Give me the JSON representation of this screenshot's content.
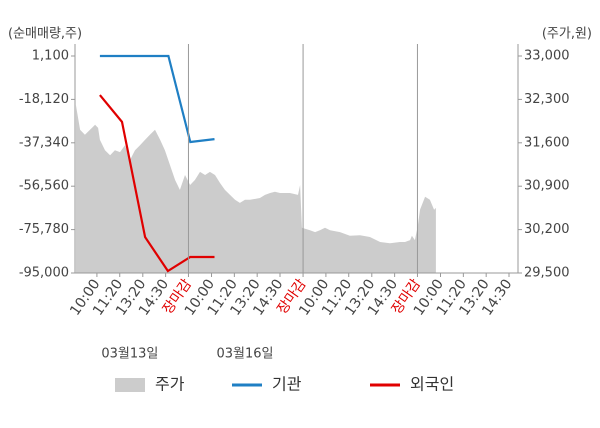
{
  "chart_data": {
    "type": "combo",
    "y_axis_label": "(순매매량,주)",
    "y2_axis_label": "(주가,원)",
    "xlim": [
      -0.65,
      18.56
    ],
    "xticks": [
      {
        "value": 0.3,
        "label": "10:00"
      },
      {
        "value": 1.29,
        "label": "11:20"
      },
      {
        "value": 2.29,
        "label": "13:20"
      },
      {
        "value": 3.28,
        "label": "14:30"
      },
      {
        "value": 4.27,
        "label": "장마감",
        "color": "#e00000"
      },
      {
        "value": 5.27,
        "label": "10:00"
      },
      {
        "value": 6.26,
        "label": "11:20"
      },
      {
        "value": 7.25,
        "label": "13:20"
      },
      {
        "value": 8.24,
        "label": "14:30"
      },
      {
        "value": 9.24,
        "label": "장마감",
        "color": "#e00000"
      },
      {
        "value": 10.23,
        "label": "10:00"
      },
      {
        "value": 11.22,
        "label": "11:20"
      },
      {
        "value": 12.22,
        "label": "13:20"
      },
      {
        "value": 13.21,
        "label": "14:30"
      },
      {
        "value": 14.2,
        "label": "장마감",
        "color": "#e00000"
      },
      {
        "value": 15.2,
        "label": "10:00"
      },
      {
        "value": 16.19,
        "label": "11:20"
      },
      {
        "value": 17.18,
        "label": "13:20"
      },
      {
        "value": 18.17,
        "label": "14:30"
      }
    ],
    "date_labels": [
      {
        "value": 1.73,
        "label": "03월13일"
      },
      {
        "value": 6.72,
        "label": "03월16일"
      }
    ],
    "ylim": [
      -95000,
      1100
    ],
    "yticks": [
      {
        "value": 1100,
        "label": "1,100"
      },
      {
        "value": -18120,
        "label": "-18,120"
      },
      {
        "value": -37340,
        "label": "-37,340"
      },
      {
        "value": -56560,
        "label": "-56,560"
      },
      {
        "value": -75780,
        "label": "-75,780"
      },
      {
        "value": -95000,
        "label": "-95,000"
      }
    ],
    "y2lim": [
      29500,
      33000
    ],
    "y2ticks": [
      {
        "value": 33000,
        "label": "33,000"
      },
      {
        "value": 32300,
        "label": "32,300"
      },
      {
        "value": 31600,
        "label": "31,600"
      },
      {
        "value": 30900,
        "label": "30,900"
      },
      {
        "value": 30200,
        "label": "30,200"
      },
      {
        "value": 29500,
        "label": "29,500"
      }
    ],
    "series": [
      {
        "name": "주가",
        "type": "area",
        "axis": "y2",
        "color": "#cccccc",
        "x": [
          -0.61,
          -0.43,
          -0.22,
          0,
          0.22,
          0.35,
          0.43,
          0.65,
          0.87,
          1.08,
          1.3,
          1.52,
          1.73,
          1.95,
          2.17,
          2.39,
          2.6,
          2.82,
          3.04,
          3.25,
          3.47,
          3.69,
          3.9,
          4.12,
          4.34,
          4.55,
          4.77,
          4.99,
          5.2,
          5.42,
          5.64,
          5.85,
          6.07,
          6.29,
          6.5,
          6.72,
          6.94,
          7.37,
          7.59,
          7.81,
          8.02,
          8.24,
          8.67,
          9.02,
          9.11,
          9.19,
          9.54,
          9.76,
          9.97,
          10.19,
          10.41,
          10.84,
          11.27,
          11.71,
          12.14,
          12.58,
          13.01,
          13.44,
          13.66,
          13.88,
          13.96,
          14.09,
          14.22,
          14.31,
          14.53,
          14.74,
          14.92,
          15.0
        ],
        "values": [
          32210,
          31810,
          31730,
          31810,
          31890,
          31840,
          31650,
          31480,
          31400,
          31480,
          31450,
          31560,
          31320,
          31480,
          31560,
          31650,
          31730,
          31810,
          31650,
          31480,
          31240,
          31000,
          30840,
          31080,
          30920,
          31000,
          31130,
          31080,
          31130,
          31080,
          30950,
          30840,
          30760,
          30680,
          30630,
          30680,
          30680,
          30710,
          30760,
          30790,
          30810,
          30790,
          30790,
          30760,
          30920,
          30230,
          30190,
          30160,
          30190,
          30230,
          30190,
          30160,
          30100,
          30110,
          30080,
          30000,
          29980,
          30000,
          30000,
          30030,
          30100,
          30030,
          30270,
          30520,
          30730,
          30680,
          30520,
          30550
        ]
      },
      {
        "name": "기관",
        "type": "line",
        "color": "#1f7fc4",
        "x": [
          0.43,
          3.4,
          4.35,
          5.4
        ],
        "values": [
          1100,
          1100,
          -37000,
          -35700
        ]
      },
      {
        "name": "외국인",
        "type": "line",
        "color": "#e00000",
        "x": [
          0.43,
          1.39,
          2.39,
          3.38,
          4.35,
          5.4
        ],
        "values": [
          -16200,
          -28100,
          -79100,
          -94100,
          -87900,
          -87900
        ]
      }
    ]
  }
}
